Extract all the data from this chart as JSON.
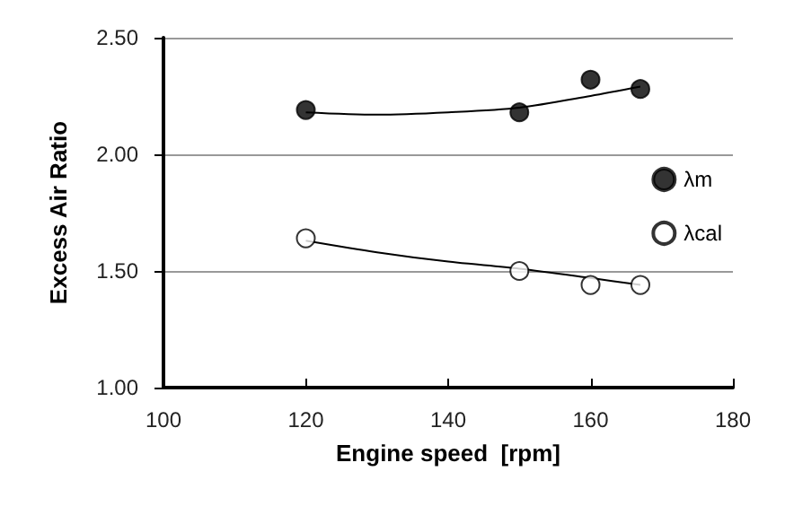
{
  "chart_data": {
    "type": "scatter",
    "xlabel": "Engine speed  [rpm]",
    "ylabel": "Excess Air Ratio",
    "xlim": [
      100,
      180
    ],
    "xticks": [
      100,
      120,
      140,
      160,
      180
    ],
    "ylim": [
      1.0,
      2.5
    ],
    "yticks": [
      {
        "value": 1.0,
        "label": "1.00"
      },
      {
        "value": 1.5,
        "label": "1.50"
      },
      {
        "value": 2.0,
        "label": "2.00"
      },
      {
        "value": 2.5,
        "label": "2.50"
      }
    ],
    "grid": "y",
    "legend": "right",
    "marker": "circle",
    "series": [
      {
        "name": "λm",
        "color": "#000000",
        "x": [
          120,
          150,
          160,
          167
        ],
        "values": [
          2.19,
          2.18,
          2.32,
          2.28
        ]
      },
      {
        "name": "λcal",
        "color": "#ffffff",
        "x": [
          120,
          150,
          160,
          167
        ],
        "values": [
          1.64,
          1.5,
          1.44,
          1.44
        ]
      },
      {
        "type": "line",
        "color": "#000000",
        "marker": "none",
        "x": [
          120,
          130,
          140,
          150,
          160,
          167
        ],
        "values": [
          2.18,
          2.17,
          2.18,
          2.2,
          2.25,
          2.29
        ]
      },
      {
        "type": "line",
        "color": "#000000",
        "marker": "none",
        "x": [
          120,
          130,
          140,
          150,
          160,
          167
        ],
        "values": [
          1.63,
          1.58,
          1.54,
          1.51,
          1.47,
          1.44
        ]
      }
    ]
  }
}
